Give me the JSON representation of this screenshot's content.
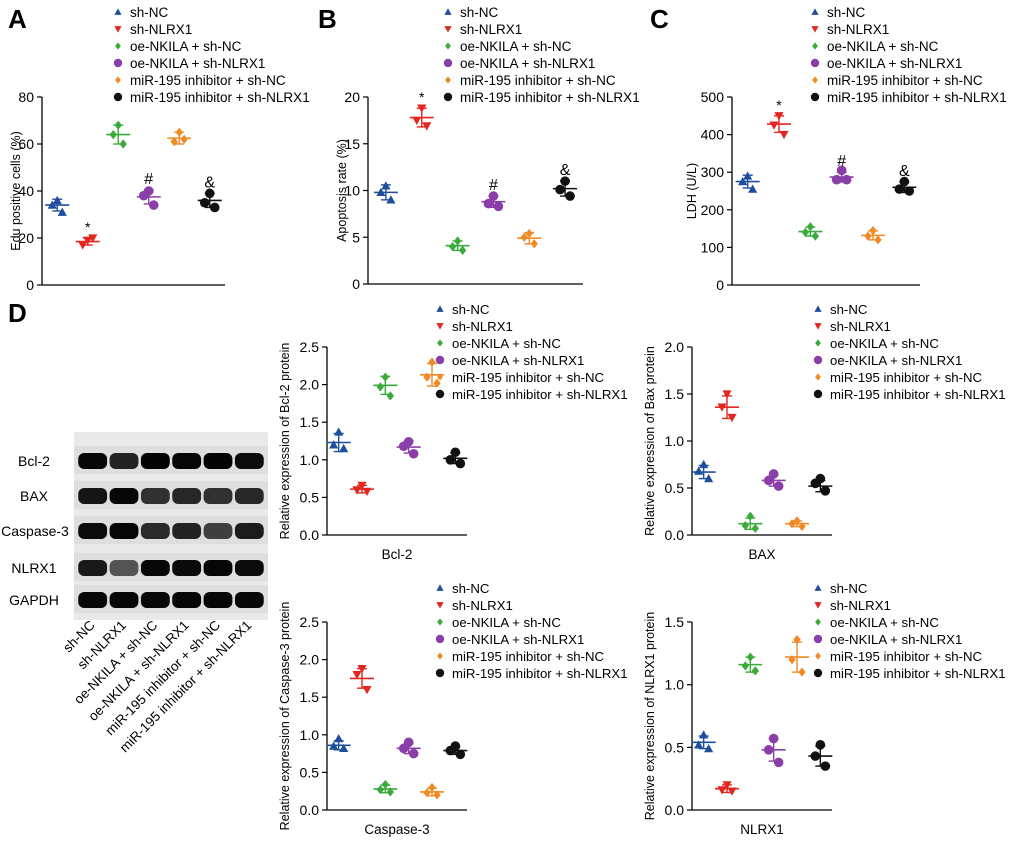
{
  "legend": {
    "groups": [
      "sh-NC",
      "sh-NLRX1",
      "oe-NKILA + sh-NC",
      "oe-NKILA + sh-NLRX1",
      "miR-195 inhibitor + sh-NC",
      "miR-195 inhibitor + sh-NLRX1"
    ],
    "markers": [
      "triangle-up",
      "triangle-down",
      "diamond",
      "circle",
      "diamond",
      "circle"
    ]
  },
  "colors": [
    "#1f4e9c",
    "#e3261f",
    "#3aab3a",
    "#8a3fa8",
    "#f08a24",
    "#111111"
  ],
  "blot": {
    "rows": [
      "Bcl-2",
      "BAX",
      "Caspase-3",
      "NLRX1",
      "GAPDH"
    ],
    "lanes": [
      "sh-NC",
      "sh-NLRX1",
      "oe-NKILA + sh-NC",
      "oe-NKILA + sh-NLRX1",
      "miR-195 inhibitor + sh-NC",
      "miR-195 inhibitor + sh-NLRX1"
    ],
    "band_intensity": [
      [
        0.95,
        0.75,
        0.98,
        0.96,
        0.98,
        0.92
      ],
      [
        0.85,
        0.95,
        0.65,
        0.72,
        0.65,
        0.72
      ],
      [
        0.92,
        0.96,
        0.7,
        0.75,
        0.55,
        0.8
      ],
      [
        0.82,
        0.4,
        0.95,
        0.93,
        0.96,
        0.92
      ],
      [
        0.95,
        0.95,
        0.95,
        0.95,
        0.95,
        0.95
      ]
    ]
  },
  "chart_data": [
    {
      "panel": "A",
      "type": "scatter",
      "ylabel": "Edu positive cells (%)",
      "xlabel": "",
      "ylim": [
        0,
        80
      ],
      "yticks": [
        0,
        20,
        40,
        60,
        80
      ],
      "points": [
        [
          36,
          34,
          31
        ],
        [
          19,
          17,
          20
        ],
        [
          68,
          64,
          60
        ],
        [
          40,
          38,
          34
        ],
        [
          65,
          61,
          62
        ],
        [
          39,
          35,
          33
        ]
      ],
      "means": [
        34,
        18.5,
        64,
        37.5,
        62.5,
        36
      ],
      "sd": [
        2.5,
        1.5,
        4,
        3,
        2.5,
        3
      ],
      "annotations": {
        "1": "*",
        "3": "#",
        "5": "&"
      }
    },
    {
      "panel": "B",
      "type": "scatter",
      "ylabel": "Apoptosis rate (%)",
      "xlabel": "",
      "ylim": [
        0,
        20
      ],
      "yticks": [
        0,
        5,
        10,
        15,
        20
      ],
      "points": [
        [
          10.5,
          9.8,
          9.0
        ],
        [
          18.8,
          17.5,
          16.9
        ],
        [
          4.6,
          4.0,
          3.6
        ],
        [
          9.4,
          8.6,
          8.3
        ],
        [
          5.4,
          5.0,
          4.3
        ],
        [
          11.0,
          10.1,
          9.4
        ]
      ],
      "means": [
        9.8,
        17.8,
        4.1,
        8.8,
        4.9,
        10.2
      ],
      "sd": [
        0.8,
        1.0,
        0.5,
        0.6,
        0.6,
        0.8
      ],
      "annotations": {
        "1": "*",
        "3": "#",
        "5": "&"
      }
    },
    {
      "panel": "C",
      "type": "scatter",
      "ylabel": "LDH (U/L)",
      "xlabel": "",
      "ylim": [
        0,
        500
      ],
      "yticks": [
        0,
        100,
        200,
        300,
        400,
        500
      ],
      "points": [
        [
          290,
          275,
          255
        ],
        [
          450,
          425,
          400
        ],
        [
          155,
          140,
          130
        ],
        [
          305,
          280,
          280
        ],
        [
          145,
          130,
          120
        ],
        [
          275,
          255,
          250
        ]
      ],
      "means": [
        275,
        428,
        142,
        287,
        132,
        260
      ],
      "sd": [
        17,
        22,
        12,
        13,
        12,
        14
      ],
      "annotations": {
        "1": "*",
        "3": "#",
        "5": "&"
      }
    },
    {
      "panel": "D1",
      "type": "scatter",
      "ylabel": "Relative expression of Bcl-2 protein",
      "xlabel": "Bcl-2",
      "ylim": [
        0,
        2.5
      ],
      "yticks": [
        0.0,
        0.5,
        1.0,
        1.5,
        2.0,
        2.5
      ],
      "points": [
        [
          1.37,
          1.2,
          1.15
        ],
        [
          0.66,
          0.6,
          0.58
        ],
        [
          2.1,
          1.97,
          1.85
        ],
        [
          1.24,
          1.18,
          1.08
        ],
        [
          2.3,
          2.1,
          2.02
        ],
        [
          1.1,
          1.0,
          0.95
        ]
      ],
      "means": [
        1.23,
        0.61,
        1.99,
        1.17,
        2.13,
        1.02
      ],
      "sd": [
        0.12,
        0.05,
        0.12,
        0.08,
        0.15,
        0.07
      ],
      "annotations": {}
    },
    {
      "panel": "D2",
      "type": "scatter",
      "ylabel": "Relative expression of Bax protein",
      "xlabel": "BAX",
      "ylim": [
        0,
        2.0
      ],
      "yticks": [
        0.0,
        0.5,
        1.0,
        1.5,
        2.0
      ],
      "points": [
        [
          0.75,
          0.68,
          0.6
        ],
        [
          1.5,
          1.36,
          1.25
        ],
        [
          0.2,
          0.1,
          0.07
        ],
        [
          0.65,
          0.58,
          0.52
        ],
        [
          0.15,
          0.12,
          0.09
        ],
        [
          0.6,
          0.55,
          0.47
        ]
      ],
      "means": [
        0.67,
        1.36,
        0.12,
        0.58,
        0.12,
        0.52
      ],
      "sd": [
        0.07,
        0.12,
        0.06,
        0.06,
        0.03,
        0.06
      ],
      "annotations": {}
    },
    {
      "panel": "D3",
      "type": "scatter",
      "ylabel": "Relative expression of Caspase-3 protein",
      "xlabel": "Caspase-3",
      "ylim": [
        0,
        2.5
      ],
      "yticks": [
        0.0,
        0.5,
        1.0,
        1.5,
        2.0,
        2.5
      ],
      "points": [
        [
          0.95,
          0.85,
          0.82
        ],
        [
          1.88,
          1.8,
          1.6
        ],
        [
          0.34,
          0.27,
          0.24
        ],
        [
          0.9,
          0.82,
          0.75
        ],
        [
          0.3,
          0.23,
          0.2
        ],
        [
          0.85,
          0.79,
          0.74
        ]
      ],
      "means": [
        0.86,
        1.75,
        0.28,
        0.82,
        0.24,
        0.79
      ],
      "sd": [
        0.06,
        0.13,
        0.05,
        0.07,
        0.05,
        0.05
      ],
      "annotations": {}
    },
    {
      "panel": "D4",
      "type": "scatter",
      "ylabel": "Relative expression of NLRX1 protein",
      "xlabel": "NLRX1",
      "ylim": [
        0,
        1.5
      ],
      "yticks": [
        0.0,
        0.5,
        1.0,
        1.5
      ],
      "points": [
        [
          0.6,
          0.52,
          0.49
        ],
        [
          0.2,
          0.16,
          0.15
        ],
        [
          1.22,
          1.15,
          1.11
        ],
        [
          0.57,
          0.48,
          0.38
        ],
        [
          1.36,
          1.2,
          1.1
        ],
        [
          0.52,
          0.43,
          0.35
        ]
      ],
      "means": [
        0.54,
        0.17,
        1.16,
        0.48,
        1.22,
        0.43
      ],
      "sd": [
        0.05,
        0.03,
        0.06,
        0.09,
        0.12,
        0.08
      ],
      "annotations": {}
    }
  ],
  "panel_labels": [
    "A",
    "B",
    "C",
    "D"
  ]
}
